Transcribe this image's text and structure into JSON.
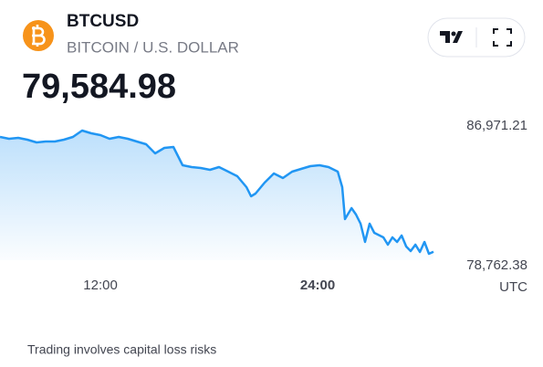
{
  "header": {
    "symbol": "BTCUSD",
    "description": "BITCOIN / U.S. DOLLAR",
    "price": "79,584.98"
  },
  "chart_data": {
    "type": "line",
    "color": "#2196f3",
    "x": [
      6.45,
      6.95,
      7.46,
      7.96,
      8.47,
      8.97,
      9.48,
      9.98,
      10.48,
      10.99,
      11.49,
      12.0,
      12.5,
      13.01,
      13.51,
      14.01,
      14.52,
      15.02,
      15.53,
      16.03,
      16.54,
      17.04,
      17.54,
      18.05,
      18.55,
      19.06,
      19.56,
      20.07,
      20.32,
      20.57,
      21.07,
      21.58,
      22.08,
      22.59,
      23.09,
      23.6,
      24.1,
      24.6,
      25.11,
      25.36,
      25.51,
      25.87,
      26.12,
      26.37,
      26.62,
      26.87,
      27.13,
      27.63,
      27.88,
      28.13,
      28.39,
      28.64,
      28.89,
      29.14,
      29.4,
      29.65,
      29.9,
      30.15,
      30.4
    ],
    "values": [
      86327,
      86219,
      86273,
      86166,
      86005,
      86058,
      86058,
      86166,
      86327,
      86702,
      86541,
      86434,
      86219,
      86327,
      86219,
      86058,
      85897,
      85361,
      85683,
      85737,
      84664,
      84556,
      84503,
      84395,
      84556,
      84288,
      84020,
      83376,
      82839,
      83000,
      83644,
      84181,
      83912,
      84288,
      84449,
      84610,
      84664,
      84556,
      84288,
      83376,
      81498,
      82142,
      81766,
      81230,
      80157,
      81230,
      80693,
      80425,
      79996,
      80425,
      80157,
      80532,
      79889,
      79620,
      79996,
      79567,
      80157,
      79459,
      79585
    ],
    "xlim": [
      6.45,
      30.4
    ],
    "xticks": [
      {
        "value": 12,
        "label": "12:00"
      },
      {
        "value": 24,
        "label": "24:00"
      }
    ],
    "x_label": "UTC",
    "ylim": [
      78762.38,
      86971.21
    ],
    "yticks": [
      {
        "value": 78762.38,
        "label": "78,762.38"
      },
      {
        "value": 86971.21,
        "label": "86,971.21"
      }
    ]
  },
  "footer": "Trading involves capital loss risks"
}
